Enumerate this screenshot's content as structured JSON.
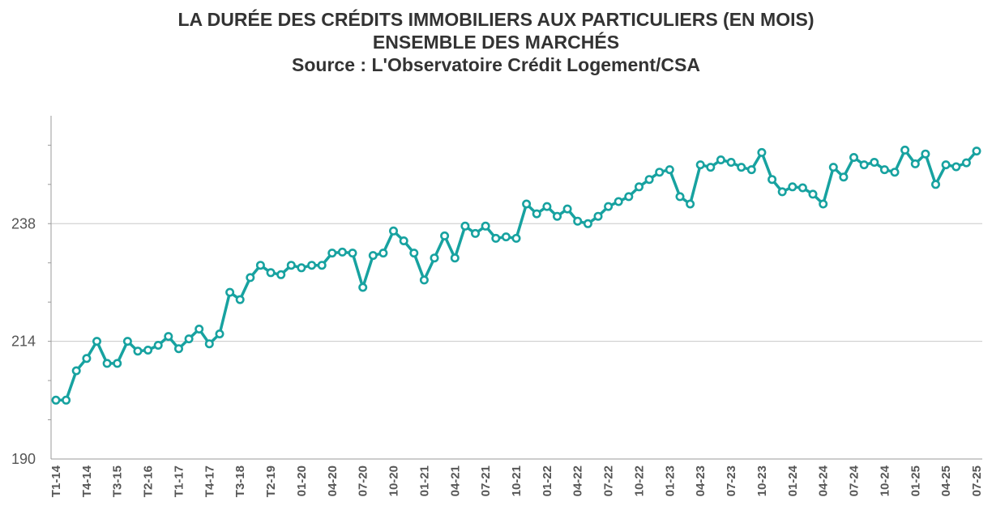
{
  "chart_data": {
    "type": "line",
    "title": "LA DURÉE DES CRÉDITS IMMOBILIERS AUX PARTICULIERS (EN MOIS)",
    "subtitle": "ENSEMBLE DES MARCHÉS",
    "source": "Source : L'Observatoire Crédit Logement/CSA",
    "xlabel": "",
    "ylabel": "",
    "ylim": [
      190,
      260
    ],
    "y_ticks": [
      "190",
      "214",
      "238"
    ],
    "grid": true,
    "legend": "none",
    "x_tick_labels": [
      "T1-14",
      "T4-14",
      "T3-15",
      "T2-16",
      "T1-17",
      "T4-17",
      "T3-18",
      "T2-19",
      "01-20",
      "04-20",
      "07-20",
      "10-20",
      "01-21",
      "04-21",
      "07-21",
      "10-21",
      "01-22",
      "04-22",
      "07-22",
      "10-22",
      "01-23",
      "04-23",
      "07-23",
      "10-23",
      "01-24",
      "04-24",
      "07-24",
      "10-24",
      "01-25",
      "04-25",
      "07-25"
    ],
    "series": [
      {
        "color": "#17a2a0",
        "values": [
          202,
          202,
          208,
          210.5,
          214,
          209.5,
          209.5,
          214,
          212,
          212.2,
          213.2,
          215,
          212.5,
          214.5,
          216.5,
          213.5,
          215.5,
          224,
          222.5,
          227,
          229.5,
          228,
          227.6,
          229.5,
          229,
          229.5,
          229.5,
          232,
          232.2,
          232,
          225,
          231.5,
          232,
          236.5,
          234.5,
          232,
          226.5,
          231,
          235.5,
          231,
          237.5,
          236,
          237.5,
          235,
          235.3,
          235,
          242,
          240,
          241.5,
          239.5,
          241,
          238.5,
          238,
          239.5,
          241.5,
          242.5,
          243.5,
          245.5,
          247,
          248.5,
          249,
          243.5,
          242,
          250,
          249.5,
          251,
          250.5,
          249.5,
          249,
          252.5,
          247,
          244.5,
          245.5,
          245.3,
          244,
          242,
          249.5,
          247.5,
          251.5,
          250,
          250.5,
          249,
          248.5,
          253,
          250.2,
          252.2,
          246,
          250,
          249.6,
          250.4,
          252.8
        ]
      }
    ]
  }
}
